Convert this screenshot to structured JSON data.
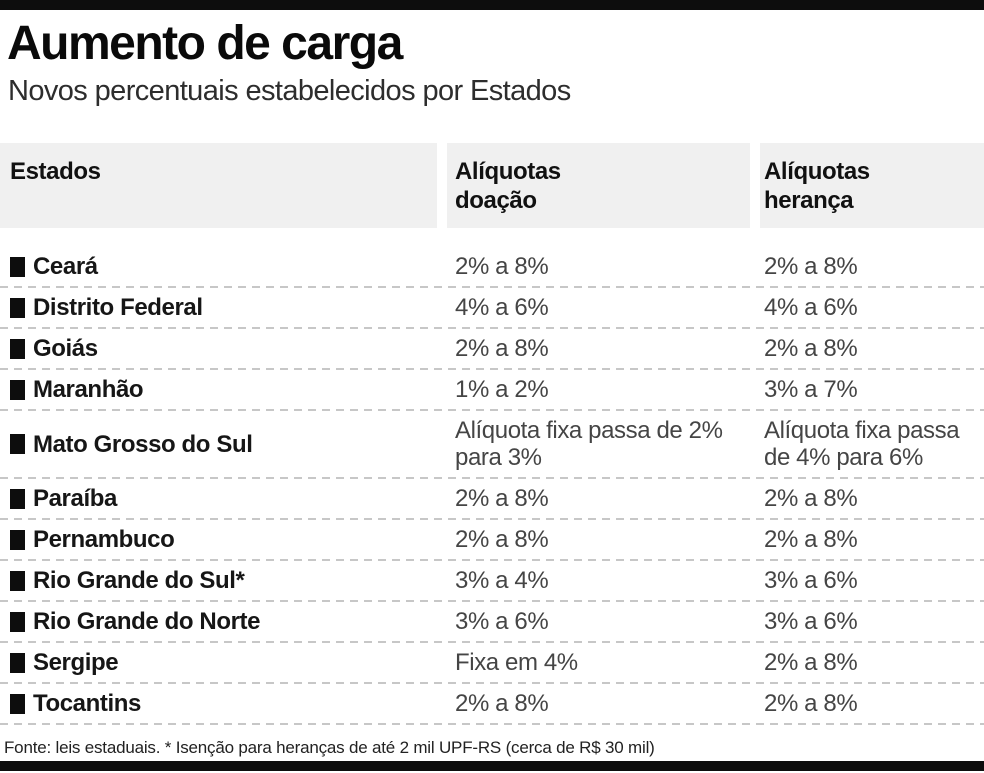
{
  "colors": {
    "accent_bar": "#0d0d0d",
    "header_bg": "#f0f0f0",
    "divider": "#c7c7c7",
    "title_text": "#0a0a0a",
    "state_text": "#161616",
    "value_text": "#454545"
  },
  "header": {
    "col1": "Estados",
    "col2": "Alíquotas\ndoação",
    "col3": "Alíquotas\nherança"
  },
  "chart_data": {
    "type": "table",
    "title": "Aumento de carga",
    "subtitle": "Novos percentuais estabelecidos por Estados",
    "columns": [
      "Estados",
      "Alíquotas doação",
      "Alíquotas herança"
    ],
    "rows": [
      [
        "Ceará",
        "2% a 8%",
        "2% a 8%"
      ],
      [
        "Distrito Federal",
        "4% a 6%",
        "4% a 6%"
      ],
      [
        "Goiás",
        "2% a 8%",
        "2% a 8%"
      ],
      [
        "Maranhão",
        "1% a 2%",
        "3% a 7%"
      ],
      [
        "Mato Grosso do Sul",
        "Alíquota fixa passa de 2% para 3%",
        "Alíquota fixa passa de 4% para 6%"
      ],
      [
        "Paraíba",
        "2% a 8%",
        "2% a 8%"
      ],
      [
        "Pernambuco",
        "2% a 8%",
        "2% a 8%"
      ],
      [
        "Rio Grande do Sul*",
        "3% a 4%",
        "3% a 6%"
      ],
      [
        "Rio Grande do Norte",
        "3% a 6%",
        "3% a 6%"
      ],
      [
        "Sergipe",
        "Fixa em 4%",
        "2% a 8%"
      ],
      [
        "Tocantins",
        "2% a 8%",
        "2% a 8%"
      ]
    ],
    "source_note": "Fonte: leis estaduais. * Isenção para heranças de até 2 mil UPF-RS (cerca de R$ 30 mil)"
  }
}
